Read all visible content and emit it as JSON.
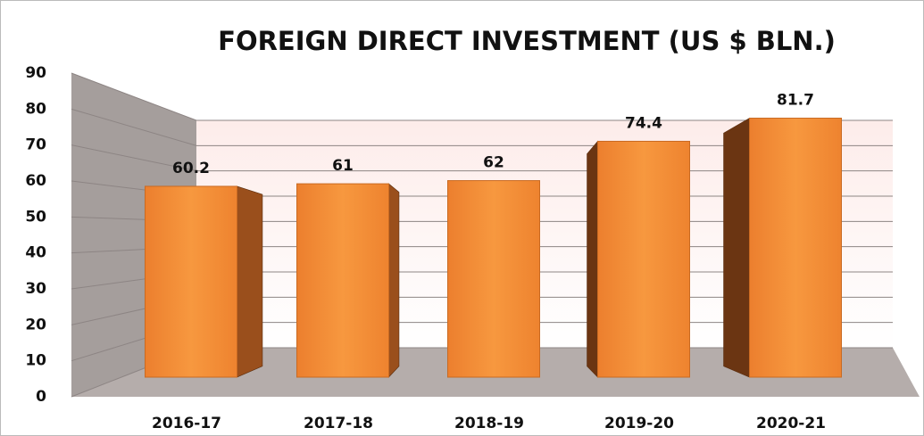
{
  "chart_data": {
    "type": "bar",
    "title": "FOREIGN DIRECT INVESTMENT (US $ BLN.)",
    "categories": [
      "2016-17",
      "2017-18",
      "2018-19",
      "2019-20",
      "2020-21"
    ],
    "values": [
      60.2,
      61,
      62,
      74.4,
      81.7
    ],
    "color": "#f08a38",
    "ylim": [
      0,
      90
    ],
    "yticks": [
      0,
      10,
      20,
      30,
      40,
      50,
      60,
      70,
      80,
      90
    ],
    "grid": true
  }
}
